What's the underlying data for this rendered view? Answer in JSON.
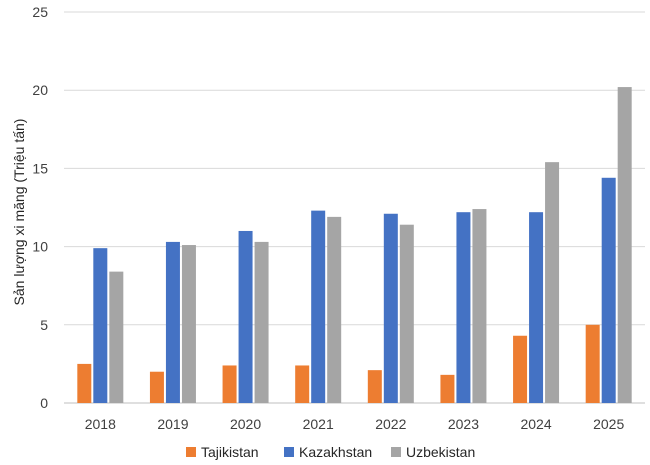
{
  "chart_data": {
    "type": "bar",
    "title": "",
    "xlabel": "",
    "ylabel": "Sản lượng xi măng (Triệu tấn)",
    "ylim": [
      0,
      25
    ],
    "yticks": [
      "0",
      "5",
      "10",
      "15",
      "20",
      "25"
    ],
    "grid": true,
    "legend_position": "bottom",
    "categories": [
      "2018",
      "2019",
      "2020",
      "2021",
      "2022",
      "2023",
      "2024",
      "2025"
    ],
    "series": [
      {
        "name": "Tajikistan",
        "color": "#ed7d31",
        "values": [
          2.5,
          2.0,
          2.4,
          2.4,
          2.1,
          1.8,
          4.3,
          5.0
        ]
      },
      {
        "name": "Kazakhstan",
        "color": "#4472c4",
        "values": [
          9.9,
          10.3,
          11.0,
          12.3,
          12.1,
          12.2,
          12.2,
          14.4
        ]
      },
      {
        "name": "Uzbekistan",
        "color": "#a5a5a5",
        "values": [
          8.4,
          10.1,
          10.3,
          11.9,
          11.4,
          12.4,
          15.4,
          20.2
        ]
      }
    ]
  }
}
